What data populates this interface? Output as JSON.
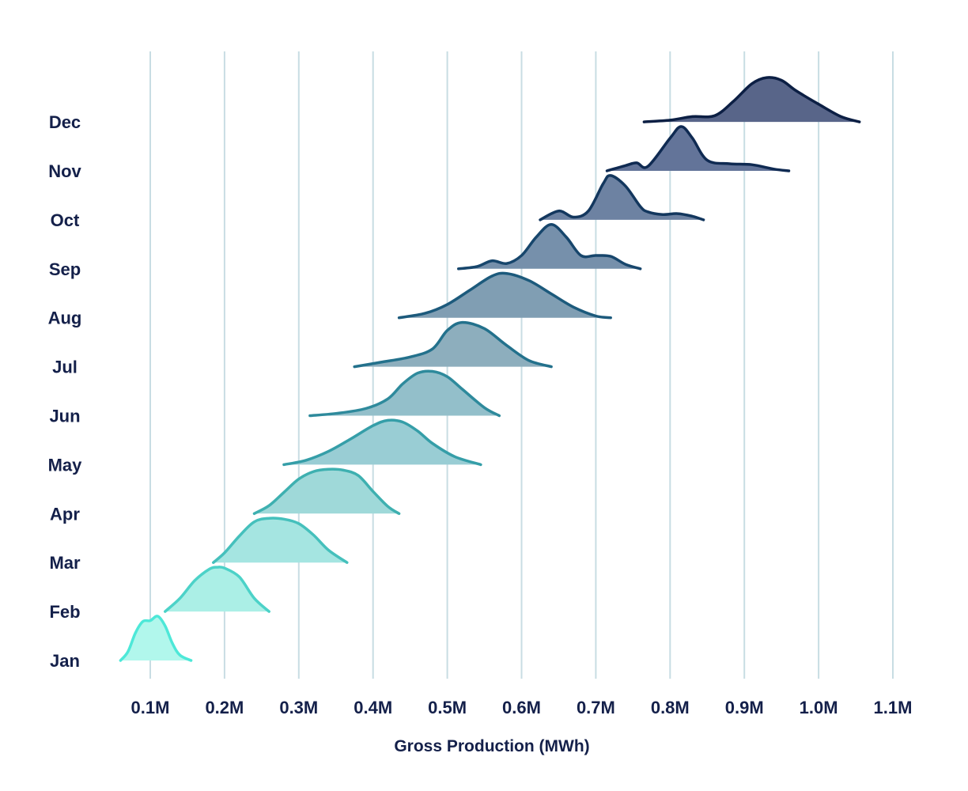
{
  "chart_data": {
    "type": "ridgeline",
    "xlabel": "Gross Production (MWh)",
    "xlim": [
      0.05,
      1.12
    ],
    "x_ticks": [
      0.1,
      0.2,
      0.3,
      0.4,
      0.5,
      0.6,
      0.7,
      0.8,
      0.9,
      1.0,
      1.1
    ],
    "x_tick_labels": [
      "0.1M",
      "0.2M",
      "0.3M",
      "0.4M",
      "0.5M",
      "0.6M",
      "0.7M",
      "0.8M",
      "0.9M",
      "1.0M",
      "1.1M"
    ],
    "grid": true,
    "series": [
      {
        "name": "Jan",
        "stroke": "#4de8d8",
        "fill": "#b1f7ec",
        "x": [
          0.06,
          0.07,
          0.08,
          0.09,
          0.1,
          0.11,
          0.12,
          0.13,
          0.14,
          0.155
        ],
        "y": [
          0.0,
          0.2,
          0.62,
          0.88,
          0.9,
          1.0,
          0.78,
          0.38,
          0.12,
          0.0
        ]
      },
      {
        "name": "Feb",
        "stroke": "#4cd2c8",
        "fill": "#abefe6",
        "x": [
          0.12,
          0.14,
          0.16,
          0.18,
          0.19,
          0.2,
          0.22,
          0.24,
          0.26
        ],
        "y": [
          0.0,
          0.3,
          0.7,
          0.96,
          1.0,
          0.98,
          0.78,
          0.3,
          0.0
        ]
      },
      {
        "name": "Mar",
        "stroke": "#45c0bc",
        "fill": "#a5e5e1",
        "x": [
          0.185,
          0.2,
          0.22,
          0.24,
          0.26,
          0.28,
          0.3,
          0.32,
          0.34,
          0.365
        ],
        "y": [
          0.0,
          0.22,
          0.6,
          0.92,
          1.0,
          0.98,
          0.88,
          0.62,
          0.28,
          0.0
        ]
      },
      {
        "name": "Apr",
        "stroke": "#3eb0b0",
        "fill": "#9fd9d9",
        "x": [
          0.24,
          0.26,
          0.28,
          0.3,
          0.32,
          0.34,
          0.36,
          0.38,
          0.4,
          0.42,
          0.435
        ],
        "y": [
          0.0,
          0.18,
          0.48,
          0.78,
          0.95,
          1.0,
          0.98,
          0.86,
          0.5,
          0.16,
          0.0
        ]
      },
      {
        "name": "May",
        "stroke": "#359ea8",
        "fill": "#99cdd4",
        "x": [
          0.28,
          0.31,
          0.34,
          0.37,
          0.4,
          0.42,
          0.44,
          0.46,
          0.48,
          0.51,
          0.545
        ],
        "y": [
          0.0,
          0.1,
          0.3,
          0.58,
          0.88,
          1.0,
          0.96,
          0.76,
          0.48,
          0.18,
          0.0
        ]
      },
      {
        "name": "Jun",
        "stroke": "#2e8a9c",
        "fill": "#93bfca",
        "x": [
          0.315,
          0.35,
          0.39,
          0.42,
          0.44,
          0.46,
          0.48,
          0.5,
          0.52,
          0.55,
          0.57
        ],
        "y": [
          0.0,
          0.05,
          0.16,
          0.38,
          0.72,
          0.96,
          1.0,
          0.88,
          0.6,
          0.18,
          0.0
        ]
      },
      {
        "name": "Jul",
        "stroke": "#23718c",
        "fill": "#8daebd",
        "x": [
          0.375,
          0.41,
          0.45,
          0.48,
          0.5,
          0.52,
          0.55,
          0.58,
          0.61,
          0.64
        ],
        "y": [
          0.0,
          0.1,
          0.22,
          0.4,
          0.82,
          1.0,
          0.86,
          0.48,
          0.14,
          0.0
        ]
      },
      {
        "name": "Aug",
        "stroke": "#1c5a7c",
        "fill": "#809eb3",
        "x": [
          0.435,
          0.47,
          0.5,
          0.53,
          0.56,
          0.58,
          0.61,
          0.64,
          0.67,
          0.7,
          0.72
        ],
        "y": [
          0.0,
          0.1,
          0.3,
          0.62,
          0.94,
          1.0,
          0.84,
          0.54,
          0.24,
          0.04,
          0.0
        ]
      },
      {
        "name": "Sep",
        "stroke": "#17466c",
        "fill": "#7690ab",
        "x": [
          0.515,
          0.54,
          0.56,
          0.58,
          0.6,
          0.62,
          0.64,
          0.66,
          0.68,
          0.7,
          0.72,
          0.74,
          0.76
        ],
        "y": [
          0.0,
          0.05,
          0.18,
          0.12,
          0.3,
          0.72,
          1.0,
          0.72,
          0.3,
          0.3,
          0.28,
          0.1,
          0.0
        ]
      },
      {
        "name": "Oct",
        "stroke": "#13375e",
        "fill": "#6d82a2",
        "x": [
          0.625,
          0.65,
          0.67,
          0.69,
          0.71,
          0.72,
          0.74,
          0.76,
          0.77,
          0.79,
          0.81,
          0.83,
          0.845
        ],
        "y": [
          0.0,
          0.2,
          0.06,
          0.2,
          0.82,
          1.0,
          0.76,
          0.3,
          0.18,
          0.12,
          0.14,
          0.08,
          0.0
        ]
      },
      {
        "name": "Nov",
        "stroke": "#0f2a52",
        "fill": "#637499",
        "x": [
          0.715,
          0.74,
          0.755,
          0.77,
          0.8,
          0.815,
          0.83,
          0.85,
          0.88,
          0.91,
          0.94,
          0.96
        ],
        "y": [
          0.0,
          0.12,
          0.18,
          0.1,
          0.74,
          1.0,
          0.74,
          0.24,
          0.16,
          0.14,
          0.04,
          0.0
        ]
      },
      {
        "name": "Dec",
        "stroke": "#0c1f44",
        "fill": "#586589",
        "x": [
          0.765,
          0.8,
          0.83,
          0.86,
          0.885,
          0.91,
          0.93,
          0.95,
          0.97,
          1.0,
          1.03,
          1.055
        ],
        "y": [
          0.0,
          0.04,
          0.12,
          0.14,
          0.46,
          0.86,
          1.0,
          0.94,
          0.7,
          0.4,
          0.12,
          0.0
        ]
      }
    ]
  }
}
